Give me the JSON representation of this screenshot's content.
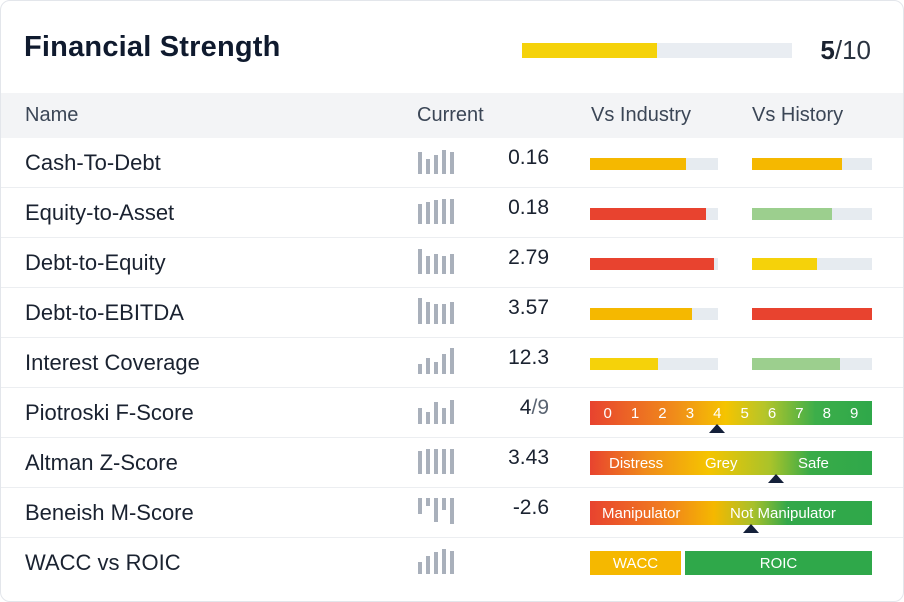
{
  "header": {
    "title": "Financial Strength",
    "score": "5",
    "score_den": "/10",
    "score_fraction": 0.5
  },
  "columns": {
    "name": "Name",
    "current": "Current",
    "vs_industry": "Vs Industry",
    "vs_history": "Vs History"
  },
  "colors": {
    "red": "#e8432f",
    "orange": "#f5b800",
    "yellow": "#f5d20a",
    "light_green": "#9ccf8e",
    "green": "#2fa84a",
    "dark": "#14203a"
  },
  "rows": [
    {
      "name": "Cash-To-Debt",
      "value": "0.16",
      "industry": {
        "fraction": 0.75,
        "color": "#f5b800"
      },
      "history": {
        "fraction": 0.75,
        "color": "#f5b800"
      }
    },
    {
      "name": "Equity-to-Asset",
      "value": "0.18",
      "industry": {
        "fraction": 0.91,
        "color": "#e8432f"
      },
      "history": {
        "fraction": 0.67,
        "color": "#9ccf8e"
      }
    },
    {
      "name": "Debt-to-Equity",
      "value": "2.79",
      "industry": {
        "fraction": 0.97,
        "color": "#e8432f"
      },
      "history": {
        "fraction": 0.54,
        "color": "#f5d20a"
      }
    },
    {
      "name": "Debt-to-EBITDA",
      "value": "3.57",
      "industry": {
        "fraction": 0.8,
        "color": "#f5b800"
      },
      "history": {
        "fraction": 1.0,
        "color": "#e8432f"
      }
    },
    {
      "name": "Interest Coverage",
      "value": "12.3",
      "industry": {
        "fraction": 0.53,
        "color": "#f5d20a"
      },
      "history": {
        "fraction": 0.73,
        "color": "#9ccf8e"
      }
    }
  ],
  "piotroski": {
    "name": "Piotroski F-Score",
    "value": "4",
    "den": "/9",
    "scale": [
      "0",
      "1",
      "2",
      "3",
      "4",
      "5",
      "6",
      "7",
      "8",
      "9"
    ],
    "marker_fraction": 0.45
  },
  "altman": {
    "name": "Altman Z-Score",
    "value": "3.43",
    "labels": [
      "Distress",
      "Grey",
      "Safe"
    ],
    "marker_fraction": 0.66
  },
  "beneish": {
    "name": "Beneish M-Score",
    "value": "-2.6",
    "labels": [
      "Manipulator",
      "Not Manipulator"
    ],
    "marker_fraction": 0.57
  },
  "wacc": {
    "name": "WACC vs ROIC",
    "wacc_label": "WACC",
    "roic_label": "ROIC"
  }
}
